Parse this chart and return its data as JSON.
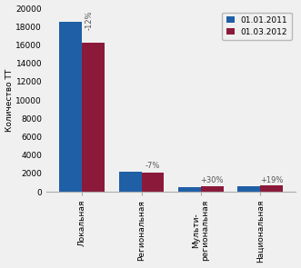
{
  "categories": [
    "Локальная",
    "Региональная",
    "Мульти-\nрегиональная",
    "Национальная"
  ],
  "values_2011": [
    18500,
    2200,
    490,
    560
  ],
  "values_2012": [
    16200,
    2050,
    640,
    660
  ],
  "pct_labels": [
    "-12%",
    "-7%",
    "+30%",
    "+19%"
  ],
  "color_2011": "#1f5fa6",
  "color_2012": "#8b1a3a",
  "legend_2011": "01.01.2011",
  "legend_2012": "01.03.2012",
  "ylabel": "Количество ТТ",
  "ylim": [
    0,
    20000
  ],
  "yticks": [
    0,
    2000,
    4000,
    6000,
    8000,
    10000,
    12000,
    14000,
    16000,
    18000,
    20000
  ],
  "bar_width": 0.38,
  "background_color": "#f0f0f0"
}
